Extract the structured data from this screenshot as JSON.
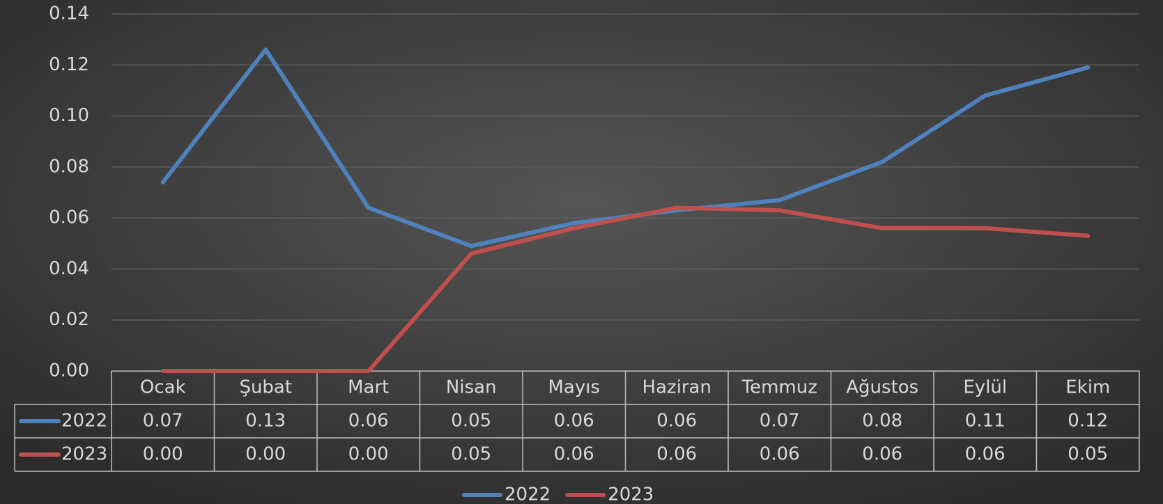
{
  "chart_data": {
    "type": "line",
    "categories": [
      "Ocak",
      "Şubat",
      "Mart",
      "Nisan",
      "Mayıs",
      "Haziran",
      "Temmuz",
      "Ağustos",
      "Eylül",
      "Ekim"
    ],
    "series": [
      {
        "name": "2022",
        "color": "#4f81bd",
        "values": [
          0.074,
          0.126,
          0.064,
          0.049,
          0.058,
          0.063,
          0.067,
          0.082,
          0.108,
          0.119
        ],
        "value_labels": [
          "0.07",
          "0.13",
          "0.06",
          "0.05",
          "0.06",
          "0.06",
          "0.07",
          "0.08",
          "0.11",
          "0.12"
        ]
      },
      {
        "name": "2023",
        "color": "#c0504d",
        "values": [
          0,
          0,
          0,
          0.046,
          0.056,
          0.064,
          0.063,
          0.056,
          0.056,
          0.053
        ],
        "value_labels": [
          "0.00",
          "0.00",
          "0.00",
          "0.05",
          "0.06",
          "0.06",
          "0.06",
          "0.06",
          "0.06",
          "0.05"
        ]
      }
    ],
    "ylim": [
      0,
      0.14
    ],
    "yticks": [
      {
        "value": 0,
        "label": "0.00"
      },
      0.02,
      0.04,
      0.06,
      0.08,
      {
        "value": 0.1,
        "label": "0.10"
      },
      0.12,
      0.14
    ],
    "grid": true,
    "legend": "bottom"
  }
}
